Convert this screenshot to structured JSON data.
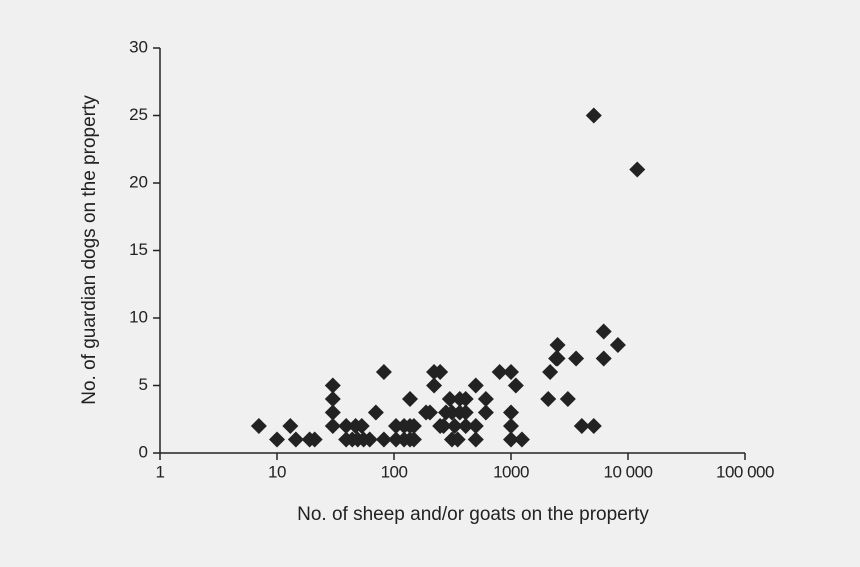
{
  "chart_data": {
    "type": "scatter",
    "x_label": "No. of sheep and/or goats on the property",
    "y_label": "No. of guardian dogs on the property",
    "x_log": true,
    "color": "#222222",
    "x": [
      7,
      10,
      13,
      14.5,
      19,
      21,
      30,
      30,
      30,
      30,
      39,
      39,
      44,
      47,
      49,
      53,
      55,
      62,
      70,
      82,
      82,
      104,
      104,
      122,
      122,
      137,
      137,
      137,
      148,
      148,
      188,
      203,
      220,
      220,
      248,
      248,
      265,
      278,
      313,
      300,
      313,
      330,
      350,
      365,
      365,
      410,
      410,
      410,
      500,
      500,
      500,
      610,
      610,
      800,
      1000,
      1000,
      1000,
      1000,
      1100,
      1240,
      2080,
      2160,
      2430,
      2500,
      2500,
      3060,
      3600,
      4030,
      5100,
      5100,
      6200,
      6200,
      8200,
      12000
    ],
    "y": [
      2,
      1,
      2,
      1,
      1,
      1,
      5,
      4,
      3,
      2,
      2,
      1,
      1,
      2,
      1,
      2,
      1,
      1,
      3,
      6,
      1,
      2,
      1,
      1,
      2,
      4,
      2,
      1,
      1,
      2,
      3,
      3,
      6,
      5,
      6,
      2,
      2,
      3,
      3,
      4,
      1,
      2,
      1,
      3,
      4,
      4,
      2,
      3,
      5,
      2,
      1,
      4,
      3,
      6,
      6,
      3,
      2,
      1,
      5,
      1,
      4,
      6,
      7,
      8,
      7,
      4,
      7,
      2,
      2,
      25,
      9,
      7,
      8,
      21
    ],
    "xlim": [
      1,
      100000
    ],
    "xticks": [
      1,
      10,
      100,
      1000,
      {
        "value": 10000,
        "label": "10 000"
      },
      {
        "value": 100000,
        "label": "100 000"
      }
    ],
    "ylim": [
      0,
      30
    ],
    "yticks": [
      0,
      5,
      10,
      15,
      20,
      25,
      30
    ]
  }
}
